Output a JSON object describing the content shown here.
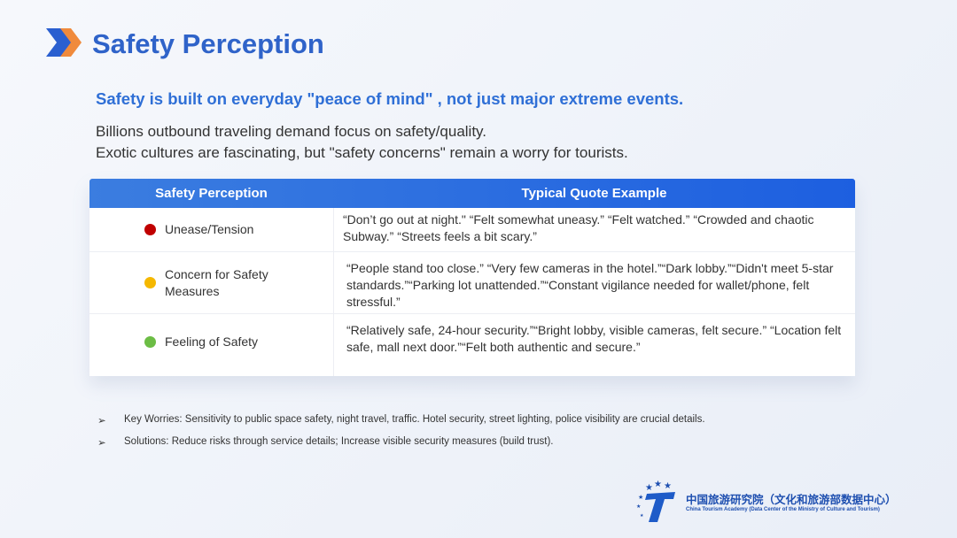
{
  "header": {
    "title": "Safety Perception"
  },
  "subtitle": "Safety is built on everyday \"peace of mind\" , not just major extreme events.",
  "intro": [
    "Billions outbound traveling demand focus on safety/quality.",
    "Exotic cultures are fascinating, but \"safety concerns\" remain a worry for tourists."
  ],
  "table": {
    "headers": [
      "Safety Perception",
      "Typical Quote Example"
    ],
    "rows": [
      {
        "label": "Unease/Tension",
        "color": "#c00000",
        "quote": "“Don’t go out at night.\" “Felt somewhat uneasy.”  “Felt watched.”  “Crowded and chaotic Subway.”  “Streets feels a bit scary.”"
      },
      {
        "label": "Concern for Safety Measures",
        "color": "#f5b800",
        "quote": " “People stand too close.” “Very few cameras in the hotel.”“Dark lobby.”“Didn't meet 5-star standards.”“Parking lot unattended.”“Constant vigilance needed for wallet/phone, felt stressful.”"
      },
      {
        "label": "Feeling of Safety",
        "color": "#6cbd45",
        "quote": "“Relatively safe, 24-hour security.”“Bright lobby, visible cameras, felt secure.” “Location felt safe, mall next door.”“Felt both authentic and secure.”"
      }
    ]
  },
  "bullets": [
    "Key Worries: Sensitivity to public space safety, night travel, traffic. Hotel security, street lighting, police visibility are crucial details.",
    "Solutions: Reduce risks through service details; Increase visible security measures (build trust)."
  ],
  "footer": {
    "name_cn": "中国旅游研究院（文化和旅游部数据中心）",
    "name_en": "China Tourism Academy (Data Center of the Ministry of Culture and Tourism)"
  }
}
